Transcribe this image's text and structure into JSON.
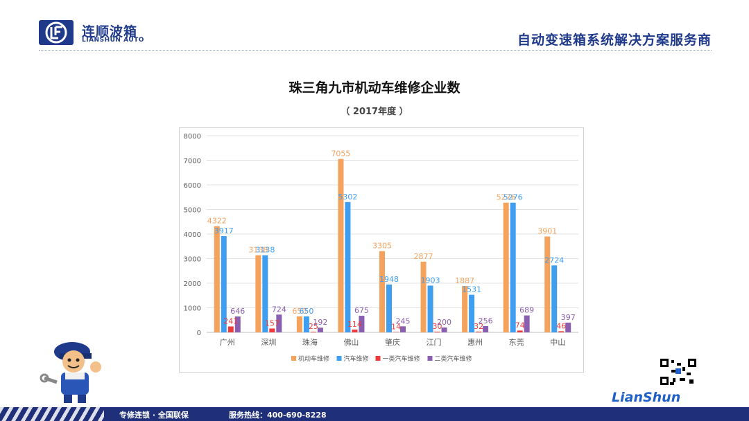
{
  "header": {
    "logo_cn": "连顺波箱",
    "logo_en": "LIANSHUN AUTO",
    "slogan": "自动变速箱系统解决方案服务商"
  },
  "footer": {
    "text1": "专修连锁 · 全国联保",
    "text2": "服务热线：400-690-8228"
  },
  "brand": "LianShun",
  "chart_data": {
    "type": "bar",
    "title": "珠三角九市机动车维修企业数",
    "subtitle": "（ 2017年度 ）",
    "categories": [
      "广州",
      "深圳",
      "珠海",
      "佛山",
      "肇庆",
      "江门",
      "惠州",
      "东莞",
      "中山"
    ],
    "series": [
      {
        "name": "机动车维修",
        "color": "#f5a25d",
        "values": [
          4322,
          3138,
          650,
          7055,
          3305,
          2877,
          1887,
          5276,
          3901
        ]
      },
      {
        "name": "汽车维修",
        "color": "#3f9ef0",
        "values": [
          3917,
          3138,
          650,
          5302,
          1948,
          1903,
          1531,
          5276,
          2724
        ]
      },
      {
        "name": "一类汽车维修",
        "color": "#ee3a3a",
        "values": [
          241,
          157,
          25,
          114,
          14,
          30,
          32,
          74,
          46
        ]
      },
      {
        "name": "二类汽车维修",
        "color": "#8a5fb0",
        "values": [
          646,
          724,
          192,
          675,
          245,
          200,
          256,
          689,
          397
        ]
      }
    ],
    "ylim": [
      0,
      8000
    ],
    "yticks": [
      0,
      1000,
      2000,
      3000,
      4000,
      5000,
      6000,
      7000,
      8000
    ],
    "grid": true,
    "legend": "bottom"
  }
}
